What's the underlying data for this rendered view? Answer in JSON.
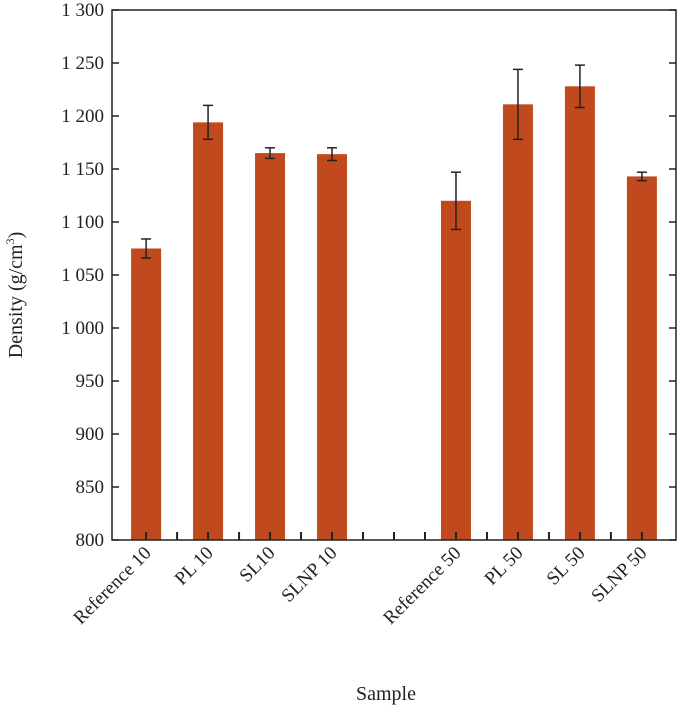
{
  "chart_data": {
    "type": "bar",
    "xlabel": "Sample",
    "ylabel": "Density (g/cm",
    "ylabel_sup": "3",
    "ylabel_close": ")",
    "ylim": [
      800,
      1300
    ],
    "yticks": [
      800,
      850,
      900,
      950,
      1000,
      1050,
      1100,
      1150,
      1200,
      1250,
      1300
    ],
    "ytick_labels": [
      "800",
      "850",
      "900",
      "950",
      "1 000",
      "1 050",
      "1 100",
      "1 150",
      "1 200",
      "1 250",
      "1 300"
    ],
    "categories": [
      "Reference 10",
      "PL 10",
      "SL10",
      "SLNP 10",
      "",
      "Reference 50",
      "PL 50",
      "SL 50",
      "SLNP 50"
    ],
    "values": [
      1075,
      1194,
      1165,
      1164,
      null,
      1120,
      1211,
      1228,
      1143
    ],
    "errors": [
      9,
      16,
      5,
      6,
      null,
      27,
      33,
      20,
      4
    ],
    "bar_color": "#c04a1d",
    "grid": false
  }
}
